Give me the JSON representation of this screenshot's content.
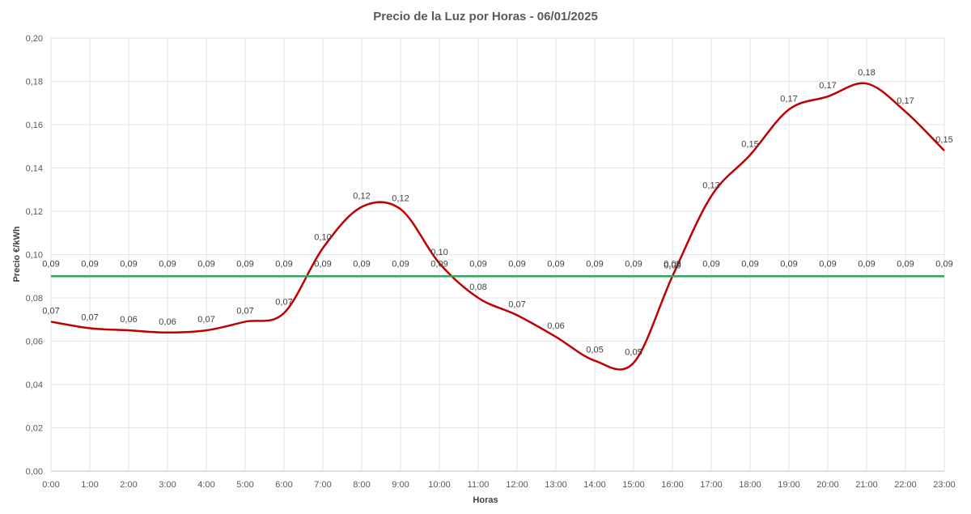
{
  "chart_data": {
    "type": "line",
    "title": "Precio de la Luz por Horas - 06/01/2025",
    "xlabel": "Horas",
    "ylabel": "Precio €/kWh",
    "categories": [
      "0:00",
      "1:00",
      "2:00",
      "3:00",
      "4:00",
      "5:00",
      "6:00",
      "7:00",
      "8:00",
      "9:00",
      "10:00",
      "11:00",
      "12:00",
      "13:00",
      "14:00",
      "15:00",
      "16:00",
      "17:00",
      "18:00",
      "19:00",
      "20:00",
      "21:00",
      "22:00",
      "23:00"
    ],
    "ylim": [
      0,
      0.2
    ],
    "yticks": [
      "0,00",
      "0,02",
      "0,04",
      "0,06",
      "0,08",
      "0,10",
      "0,12",
      "0,14",
      "0,16",
      "0,18",
      "0,20"
    ],
    "grid": true,
    "legend": "none",
    "series": [
      {
        "color": "#c00000",
        "smooth": true,
        "values": [
          0.069,
          0.066,
          0.065,
          0.064,
          0.065,
          0.069,
          0.073,
          0.103,
          0.122,
          0.121,
          0.096,
          0.08,
          0.072,
          0.062,
          0.051,
          0.05,
          0.09,
          0.127,
          0.146,
          0.167,
          0.173,
          0.179,
          0.166,
          0.148
        ],
        "labels": [
          "0,07",
          "0,07",
          "0,06",
          "0,06",
          "0,07",
          "0,07",
          "0,07",
          "0,10",
          "0,12",
          "0,12",
          "0,10",
          "0,08",
          "0,07",
          "0,06",
          "0,05",
          "0,05",
          "0,09",
          "0,13",
          "0,15",
          "0,17",
          "0,17",
          "0,18",
          "0,17",
          "0,15"
        ]
      },
      {
        "color": "#2ea55b",
        "smooth": false,
        "values": [
          0.09,
          0.09,
          0.09,
          0.09,
          0.09,
          0.09,
          0.09,
          0.09,
          0.09,
          0.09,
          0.09,
          0.09,
          0.09,
          0.09,
          0.09,
          0.09,
          0.09,
          0.09,
          0.09,
          0.09,
          0.09,
          0.09,
          0.09,
          0.09
        ],
        "labels": [
          "0,09",
          "0,09",
          "0,09",
          "0,09",
          "0,09",
          "0,09",
          "0,09",
          "0,09",
          "0,09",
          "0,09",
          "0,09",
          "0,09",
          "0,09",
          "0,09",
          "0,09",
          "0,09",
          "0,09",
          "0,09",
          "0,09",
          "0,09",
          "0,09",
          "0,09",
          "0,09",
          "0,09"
        ]
      }
    ]
  }
}
